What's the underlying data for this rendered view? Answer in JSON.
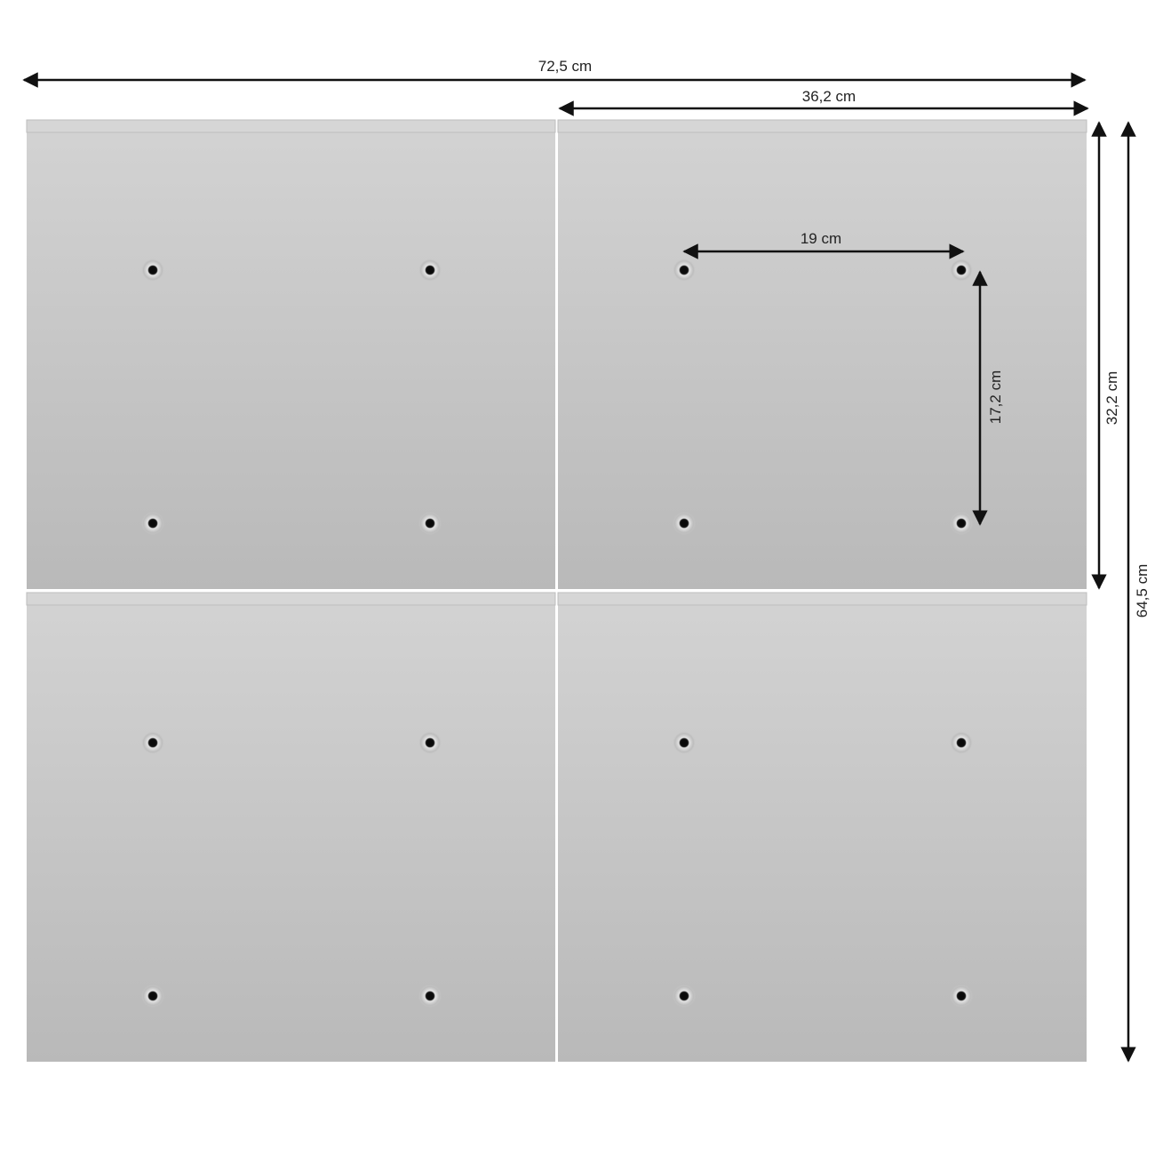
{
  "dimensions": {
    "total_width": "72,5 cm",
    "panel_width": "36,2 cm",
    "hole_spacing_horizontal": "19 cm",
    "hole_spacing_vertical": "17,2 cm",
    "panel_height": "32,2 cm",
    "total_height": "64,5 cm"
  },
  "colors": {
    "panel": "#c8c8c8",
    "arrow": "#111111"
  }
}
